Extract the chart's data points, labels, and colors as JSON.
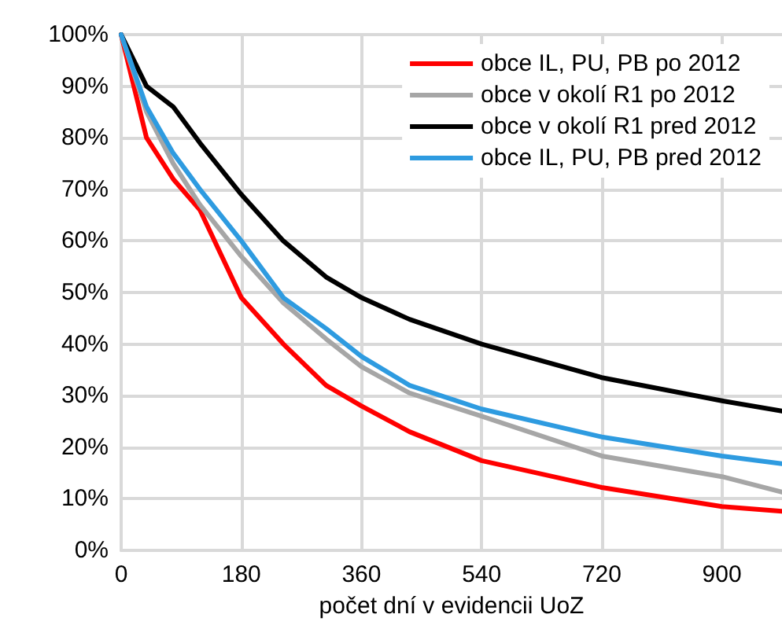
{
  "chart_data": {
    "type": "line",
    "xlabel": "počet dní v evidencii UoZ",
    "xlim": [
      0,
      990
    ],
    "xticks": [
      0,
      180,
      360,
      540,
      720,
      900
    ],
    "ylim": [
      0,
      100
    ],
    "yticks": [
      {
        "value": 0,
        "label": "0%"
      },
      {
        "value": 10,
        "label": "10%"
      },
      {
        "value": 20,
        "label": "20%"
      },
      {
        "value": 30,
        "label": "30%"
      },
      {
        "value": 40,
        "label": "40%"
      },
      {
        "value": 50,
        "label": "50%"
      },
      {
        "value": 60,
        "label": "60%"
      },
      {
        "value": 70,
        "label": "70%"
      },
      {
        "value": 80,
        "label": "80%"
      },
      {
        "value": 90,
        "label": "90%"
      },
      {
        "value": 100,
        "label": "100%"
      }
    ],
    "grid": true,
    "legend": "top right",
    "marker": "none",
    "line_style": "solid",
    "x": [
      0,
      38,
      78,
      118,
      180,
      243,
      307,
      360,
      432,
      540,
      720,
      900,
      990
    ],
    "series": [
      {
        "name": "obce IL, PU, PB po 2012",
        "color": "#ff0000",
        "values": [
          100,
          80,
          72,
          66,
          49,
          40,
          32,
          28,
          23,
          17.4,
          12.2,
          8.5,
          7.6
        ]
      },
      {
        "name": "obce v okolí R1 po 2012",
        "color": "#a6a6a6",
        "values": [
          100,
          85,
          75,
          67,
          57,
          48,
          41,
          35.6,
          30.5,
          26,
          18.3,
          14.3,
          11.3
        ]
      },
      {
        "name": "obce v okolí R1 pred 2012",
        "color": "#000000",
        "values": [
          100,
          90,
          86,
          79,
          69,
          60,
          53,
          49,
          44.8,
          40,
          33.5,
          29,
          27
        ]
      },
      {
        "name": "obce IL, PU, PB pred 2012",
        "color": "#2e9be0",
        "values": [
          100,
          86,
          77,
          70,
          60,
          49,
          43,
          37.6,
          32,
          27.4,
          22,
          18.3,
          16.8
        ]
      }
    ]
  }
}
